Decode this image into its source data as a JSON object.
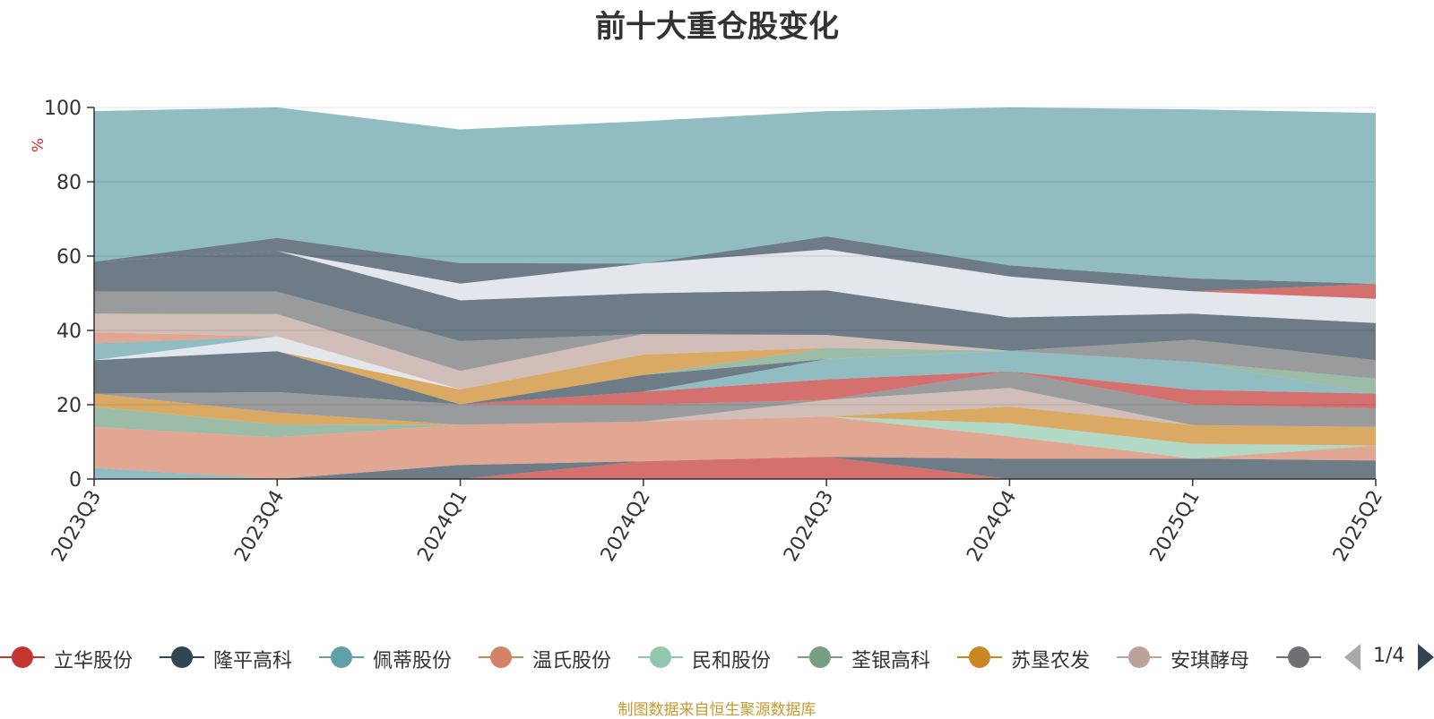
{
  "chart_data": {
    "type": "area",
    "stacked": true,
    "title": "前十大重仓股变化",
    "ylabel": "%",
    "ylim": [
      0,
      100
    ],
    "yticks": [
      0,
      20,
      40,
      60,
      80,
      100
    ],
    "categories": [
      "2023Q3",
      "2023Q4",
      "2024Q1",
      "2024Q2",
      "2024Q3",
      "2024Q4",
      "2025Q1",
      "2025Q2"
    ],
    "grid": true,
    "legend_position": "bottom",
    "legend": {
      "page": "1/4",
      "items": [
        {
          "name": "立华股份",
          "color": "#c23531"
        },
        {
          "name": "隆平高科",
          "color": "#2f4554"
        },
        {
          "name": "佩蒂股份",
          "color": "#61a0a8"
        },
        {
          "name": "温氏股份",
          "color": "#d48265"
        },
        {
          "name": "民和股份",
          "color": "#91c7ae"
        },
        {
          "name": "荃银高科",
          "color": "#749f83"
        },
        {
          "name": "苏垦农发",
          "color": "#ca8622"
        },
        {
          "name": "安琪酵母",
          "color": "#bda29a"
        },
        {
          "name": "",
          "color": "#6e7074"
        }
      ]
    },
    "series": [
      {
        "name": "立华股份",
        "color": "#c23531",
        "values": [
          0,
          0,
          0,
          4.8,
          6,
          0,
          0,
          0
        ]
      },
      {
        "name": "隆平高科",
        "color": "#2f4554",
        "values": [
          0,
          0,
          3.8,
          0,
          0,
          5.5,
          5.5,
          5
        ]
      },
      {
        "name": "佩蒂股份",
        "color": "#61a0a8",
        "values": [
          3,
          0,
          0,
          0,
          0,
          0,
          0,
          0
        ]
      },
      {
        "name": "温氏股份",
        "color": "#d48265",
        "values": [
          11,
          11.2,
          10.8,
          10.7,
          10.8,
          6,
          0,
          4
        ]
      },
      {
        "name": "民和股份",
        "color": "#91c7ae",
        "values": [
          0,
          0,
          0,
          0,
          0,
          3.5,
          4,
          0
        ]
      },
      {
        "name": "荃银高科",
        "color": "#749f83",
        "values": [
          5.5,
          3.5,
          0,
          0,
          0,
          0,
          0,
          0
        ]
      },
      {
        "name": "苏垦农发",
        "color": "#ca8622",
        "values": [
          3.5,
          3.2,
          0,
          0,
          0,
          4.5,
          5,
          5
        ]
      },
      {
        "name": "安琪酵母",
        "color": "#bda29a",
        "values": [
          0,
          0,
          0,
          0,
          4.5,
          5,
          0,
          0
        ]
      },
      {
        "name": "",
        "color": "#6e7074",
        "values": [
          0,
          5.5,
          5.5,
          4.5,
          0,
          4.5,
          5.5,
          5
        ]
      },
      {
        "name": "",
        "color": "#c23531",
        "values": [
          0,
          0,
          0,
          3.5,
          5.5,
          0,
          4,
          4
        ]
      },
      {
        "name": "",
        "color": "#61a0a8",
        "values": [
          0,
          0,
          0,
          0,
          5.5,
          5.5,
          7.5,
          0
        ]
      },
      {
        "name": "",
        "color": "#2f4554",
        "values": [
          9,
          11,
          0,
          4.5,
          0,
          0,
          0,
          0
        ]
      },
      {
        "name": "",
        "color": "#749f83",
        "values": [
          0,
          0,
          0,
          0,
          3,
          0,
          0,
          4
        ]
      },
      {
        "name": "",
        "color": "#ca8622",
        "values": [
          0,
          0,
          4,
          5.5,
          0,
          0,
          0,
          0
        ]
      },
      {
        "name": "",
        "color": "#d7dde4",
        "values": [
          0,
          4,
          0,
          0,
          0,
          0,
          0,
          0
        ]
      },
      {
        "name": "",
        "color": "#61a0a8",
        "values": [
          4.5,
          0,
          0,
          0,
          0,
          0,
          0,
          0
        ]
      },
      {
        "name": "",
        "color": "#d48265",
        "values": [
          3,
          0,
          0,
          0,
          0,
          0,
          0,
          0
        ]
      },
      {
        "name": "",
        "color": "#bda29a",
        "values": [
          5,
          6,
          5,
          5.5,
          3.5,
          0,
          0,
          0
        ]
      },
      {
        "name": "",
        "color": "#6e7074",
        "values": [
          6,
          6,
          8,
          0,
          0,
          0,
          6,
          5
        ]
      },
      {
        "name": "",
        "color": "#2f4554",
        "values": [
          8,
          11,
          11,
          11,
          12,
          9,
          7,
          10
        ]
      },
      {
        "name": "",
        "color": "#d7dde4",
        "values": [
          0,
          0,
          4.5,
          8,
          11,
          11,
          6,
          6.5
        ]
      },
      {
        "name": "",
        "color": "#c23531",
        "values": [
          0,
          0,
          0,
          0,
          0,
          0,
          0,
          4
        ]
      },
      {
        "name": "",
        "color": "#2f4554",
        "values": [
          0,
          3.5,
          5.5,
          0,
          3.5,
          3,
          3.5,
          0
        ]
      },
      {
        "name": "",
        "color": "#61a0a8",
        "values": [
          40.5,
          35.1,
          36,
          38.3,
          33.7,
          42.5,
          45.5,
          46
        ]
      }
    ]
  },
  "footer": {
    "source_note": "制图数据来自恒生聚源数据库"
  }
}
